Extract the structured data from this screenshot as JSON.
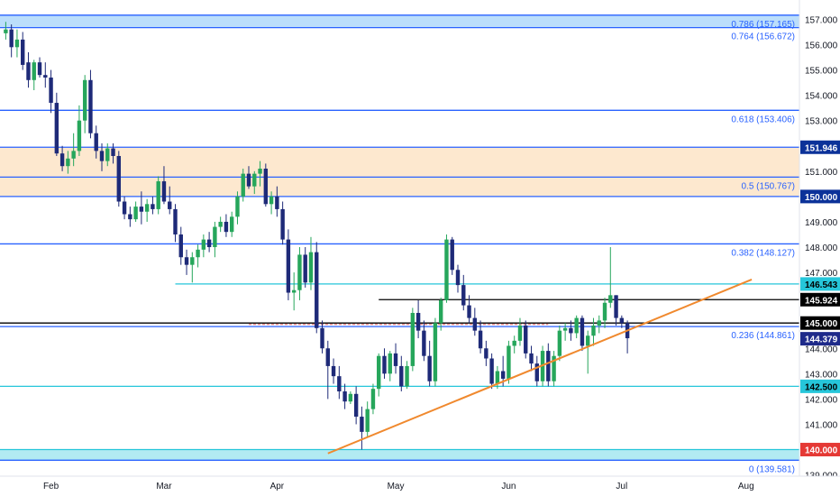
{
  "chart_data": {
    "type": "candlestick",
    "title": "",
    "xlabel": "",
    "ylabel": "",
    "ylim": [
      138.95,
      157.55
    ],
    "grid": false,
    "x_ticks": [
      {
        "label": "Feb",
        "bar": 8
      },
      {
        "label": "Mar",
        "bar": 28
      },
      {
        "label": "Apr",
        "bar": 48
      },
      {
        "label": "May",
        "bar": 69
      },
      {
        "label": "Jun",
        "bar": 89
      },
      {
        "label": "Jul",
        "bar": 109
      },
      {
        "label": "Aug",
        "bar": 131
      }
    ],
    "y_ticks": [
      139,
      140,
      141,
      142,
      143,
      144,
      145,
      146,
      147,
      148,
      149,
      150,
      151,
      152,
      153,
      154,
      155,
      156,
      157
    ],
    "fib_levels": [
      {
        "label": "0.786 (157.165)",
        "price": 157.165,
        "color": "#2962ff"
      },
      {
        "label": "0.764 (156.672)",
        "price": 156.672,
        "color": "#2962ff"
      },
      {
        "label": "0.618 (153.406)",
        "price": 153.406,
        "color": "#2962ff"
      },
      {
        "label": "0.5 (150.767)",
        "price": 150.767,
        "color": "#2962ff"
      },
      {
        "label": "0.382 (148.127)",
        "price": 148.127,
        "color": "#2962ff"
      },
      {
        "label": "0.236 (144.861)",
        "price": 144.861,
        "color": "#2962ff"
      },
      {
        "label": "0 (139.581)",
        "price": 139.581,
        "color": "#2962ff"
      }
    ],
    "levels": [
      {
        "price": 151.946,
        "color": "#2962ff"
      },
      {
        "price": 150.0,
        "color": "#2962ff"
      },
      {
        "price": 146.543,
        "color": "#26c6da",
        "from_bar": 30
      },
      {
        "price": 145.924,
        "color": "#000000",
        "from_bar": 66
      },
      {
        "price": 145.0,
        "color": "#000000"
      },
      {
        "price": 142.5,
        "color": "#26c6da"
      },
      {
        "price": 140.0,
        "color": "#26c6da"
      }
    ],
    "zones": [
      {
        "from": 150.0,
        "to": 151.946,
        "fill": "#fde8cf"
      },
      {
        "from": 156.672,
        "to": 157.165,
        "fill": "#bbdefb"
      },
      {
        "from": 139.581,
        "to": 140.0,
        "fill": "#b2ebf2"
      }
    ],
    "price_tags": [
      {
        "label": "151.946",
        "price": 151.946,
        "bg": "#0c3299",
        "fg": "#ffffff"
      },
      {
        "label": "150.000",
        "price": 150.0,
        "bg": "#0c3299",
        "fg": "#ffffff"
      },
      {
        "label": "146.543",
        "price": 146.543,
        "bg": "#26c6da",
        "fg": "#000000"
      },
      {
        "label": "145.924",
        "price": 145.924,
        "bg": "#000000",
        "fg": "#ffffff"
      },
      {
        "label": "145.000",
        "price": 145.0,
        "bg": "#000000",
        "fg": "#ffffff"
      },
      {
        "label": "144.379",
        "price": 144.379,
        "bg": "#1e2a8a",
        "fg": "#ffffff"
      },
      {
        "label": "142.500",
        "price": 142.5,
        "bg": "#26c6da",
        "fg": "#000000"
      },
      {
        "label": "140.000",
        "price": 140.0,
        "bg": "#e53935",
        "fg": "#ffffff"
      }
    ],
    "trendline": {
      "start": {
        "bar": 57,
        "price": 139.85
      },
      "end": {
        "bar": 132,
        "price": 146.72
      },
      "color": "#f0892e"
    },
    "dashed_line": {
      "price": 145.0,
      "from_bar": 43,
      "to_bar": 96,
      "color": "#e57373"
    },
    "colors": {
      "up": "#26a65b",
      "down": "#1e2a78"
    },
    "candles": [
      [
        156.45,
        156.9,
        156.2,
        156.6
      ],
      [
        156.6,
        156.8,
        155.5,
        155.9
      ],
      [
        155.9,
        156.6,
        155.5,
        156.2
      ],
      [
        156.2,
        156.5,
        155.0,
        155.2
      ],
      [
        155.3,
        155.7,
        154.3,
        154.6
      ],
      [
        154.6,
        155.4,
        154.2,
        155.3
      ],
      [
        155.3,
        155.5,
        154.7,
        154.8
      ],
      [
        154.8,
        155.3,
        154.3,
        154.7
      ],
      [
        154.7,
        155.0,
        153.3,
        153.7
      ],
      [
        153.7,
        154.1,
        151.6,
        151.7
      ],
      [
        151.7,
        152.0,
        151.0,
        151.2
      ],
      [
        151.2,
        151.8,
        150.9,
        151.5
      ],
      [
        151.5,
        152.5,
        151.2,
        151.8
      ],
      [
        151.8,
        153.6,
        151.6,
        153.0
      ],
      [
        153.0,
        154.8,
        152.5,
        154.6
      ],
      [
        154.6,
        155.0,
        152.3,
        152.5
      ],
      [
        152.5,
        152.8,
        151.5,
        151.8
      ],
      [
        151.8,
        152.1,
        151.0,
        151.4
      ],
      [
        151.4,
        152.1,
        151.2,
        151.9
      ],
      [
        151.9,
        152.1,
        151.3,
        151.6
      ],
      [
        151.6,
        151.8,
        149.6,
        149.8
      ],
      [
        149.8,
        150.0,
        149.1,
        149.3
      ],
      [
        149.3,
        149.6,
        148.8,
        149.1
      ],
      [
        149.1,
        149.8,
        149.0,
        149.6
      ],
      [
        149.6,
        150.2,
        148.9,
        149.4
      ],
      [
        149.4,
        149.9,
        149.0,
        149.7
      ],
      [
        149.7,
        150.0,
        149.3,
        149.5
      ],
      [
        149.5,
        150.8,
        149.3,
        150.6
      ],
      [
        150.6,
        151.2,
        149.7,
        149.8
      ],
      [
        149.8,
        150.4,
        149.3,
        149.5
      ],
      [
        149.5,
        149.7,
        148.2,
        148.5
      ],
      [
        148.5,
        148.8,
        147.3,
        147.6
      ],
      [
        147.6,
        147.9,
        146.9,
        147.3
      ],
      [
        147.3,
        147.8,
        146.6,
        147.6
      ],
      [
        147.6,
        148.1,
        147.2,
        147.9
      ],
      [
        147.9,
        148.5,
        147.6,
        148.3
      ],
      [
        148.3,
        148.6,
        147.8,
        148.0
      ],
      [
        148.0,
        149.0,
        147.6,
        148.8
      ],
      [
        148.8,
        149.2,
        148.6,
        149.0
      ],
      [
        149.0,
        149.3,
        148.4,
        148.6
      ],
      [
        148.6,
        149.4,
        148.4,
        149.2
      ],
      [
        149.2,
        150.2,
        148.9,
        150.0
      ],
      [
        150.0,
        151.1,
        149.8,
        150.9
      ],
      [
        150.9,
        151.2,
        150.3,
        150.4
      ],
      [
        150.4,
        151.0,
        150.1,
        150.9
      ],
      [
        150.9,
        151.4,
        150.4,
        151.1
      ],
      [
        151.1,
        151.3,
        149.6,
        149.7
      ],
      [
        149.7,
        150.2,
        149.3,
        150.0
      ],
      [
        150.0,
        150.4,
        149.2,
        149.5
      ],
      [
        149.5,
        149.8,
        148.1,
        148.3
      ],
      [
        148.3,
        148.7,
        145.9,
        146.2
      ],
      [
        146.2,
        147.0,
        145.5,
        146.3
      ],
      [
        146.3,
        148.0,
        145.9,
        147.7
      ],
      [
        147.7,
        148.0,
        146.4,
        146.6
      ],
      [
        146.6,
        148.4,
        146.3,
        147.8
      ],
      [
        147.8,
        148.2,
        144.6,
        144.8
      ],
      [
        144.8,
        145.1,
        143.8,
        144.0
      ],
      [
        144.0,
        144.3,
        142.0,
        143.3
      ],
      [
        143.3,
        143.6,
        142.6,
        142.9
      ],
      [
        142.9,
        143.3,
        142.0,
        142.3
      ],
      [
        142.3,
        142.6,
        141.6,
        141.9
      ],
      [
        141.9,
        142.3,
        141.8,
        142.2
      ],
      [
        142.2,
        142.5,
        141.0,
        141.3
      ],
      [
        141.3,
        141.7,
        140.0,
        140.7
      ],
      [
        140.7,
        141.9,
        140.5,
        141.6
      ],
      [
        141.6,
        142.6,
        141.4,
        142.4
      ],
      [
        142.4,
        143.8,
        142.1,
        143.7
      ],
      [
        143.7,
        144.0,
        142.8,
        143.0
      ],
      [
        143.0,
        143.9,
        142.7,
        143.8
      ],
      [
        143.8,
        144.2,
        143.0,
        143.3
      ],
      [
        143.3,
        143.7,
        142.3,
        142.5
      ],
      [
        142.5,
        143.5,
        142.4,
        143.3
      ],
      [
        143.3,
        145.6,
        143.1,
        145.4
      ],
      [
        145.4,
        145.9,
        144.4,
        144.7
      ],
      [
        144.7,
        145.1,
        143.5,
        143.7
      ],
      [
        143.7,
        144.3,
        142.5,
        142.7
      ],
      [
        142.7,
        145.2,
        142.5,
        145.0
      ],
      [
        145.0,
        146.0,
        144.7,
        145.9
      ],
      [
        145.9,
        148.5,
        145.8,
        148.3
      ],
      [
        148.3,
        148.4,
        146.9,
        147.1
      ],
      [
        147.1,
        147.3,
        146.2,
        146.5
      ],
      [
        146.5,
        146.9,
        145.5,
        145.7
      ],
      [
        145.7,
        146.1,
        145.0,
        145.2
      ],
      [
        145.2,
        145.6,
        144.5,
        144.7
      ],
      [
        144.7,
        145.1,
        143.8,
        144.0
      ],
      [
        144.0,
        144.3,
        143.3,
        143.6
      ],
      [
        143.6,
        143.8,
        142.4,
        142.6
      ],
      [
        142.6,
        143.3,
        142.4,
        143.1
      ],
      [
        143.1,
        143.7,
        142.5,
        142.8
      ],
      [
        142.8,
        144.3,
        142.6,
        144.1
      ],
      [
        144.1,
        144.5,
        143.8,
        144.3
      ],
      [
        144.3,
        145.2,
        144.1,
        144.9
      ],
      [
        144.9,
        145.1,
        143.6,
        143.8
      ],
      [
        143.8,
        144.1,
        143.1,
        143.4
      ],
      [
        143.4,
        143.7,
        142.5,
        142.7
      ],
      [
        142.7,
        144.1,
        142.5,
        143.9
      ],
      [
        143.9,
        144.2,
        142.5,
        142.7
      ],
      [
        142.7,
        143.9,
        142.5,
        143.7
      ],
      [
        143.7,
        144.9,
        143.5,
        144.7
      ],
      [
        144.7,
        145.0,
        144.3,
        144.8
      ],
      [
        144.8,
        145.1,
        144.3,
        144.6
      ],
      [
        144.6,
        145.3,
        144.4,
        145.2
      ],
      [
        145.2,
        145.3,
        143.9,
        144.1
      ],
      [
        144.1,
        144.7,
        143.0,
        144.5
      ],
      [
        144.5,
        145.2,
        144.1,
        144.9
      ],
      [
        144.9,
        145.3,
        144.6,
        145.1
      ],
      [
        145.1,
        146.0,
        144.8,
        145.8
      ],
      [
        145.8,
        148.0,
        145.6,
        146.1
      ],
      [
        146.1,
        146.1,
        144.9,
        145.2
      ],
      [
        145.2,
        145.3,
        144.8,
        145.0
      ],
      [
        145.0,
        145.1,
        143.8,
        144.4
      ]
    ]
  }
}
